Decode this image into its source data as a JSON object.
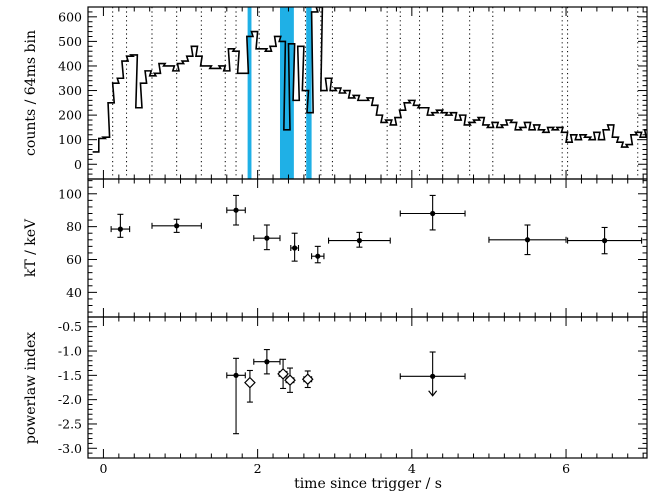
{
  "chart_data": [
    {
      "type": "line",
      "step": true,
      "ylabel": "counts / 64ms bin",
      "xlim": [
        -0.2,
        7.05
      ],
      "ylim": [
        -60,
        640
      ],
      "yticks": [
        0,
        100,
        200,
        300,
        400,
        500,
        600
      ],
      "x": [
        -0.14,
        -0.06,
        0.0,
        0.06,
        0.12,
        0.18,
        0.24,
        0.3,
        0.36,
        0.42,
        0.48,
        0.54,
        0.6,
        0.66,
        0.72,
        0.78,
        0.84,
        0.9,
        0.96,
        1.02,
        1.08,
        1.14,
        1.2,
        1.26,
        1.32,
        1.38,
        1.44,
        1.5,
        1.56,
        1.62,
        1.68,
        1.74,
        1.8,
        1.86,
        1.92,
        1.98,
        2.04,
        2.1,
        2.16,
        2.22,
        2.28,
        2.34,
        2.4,
        2.46,
        2.52,
        2.58,
        2.64,
        2.7,
        2.76,
        2.82,
        2.88,
        2.94,
        3.0,
        3.06,
        3.12,
        3.18,
        3.24,
        3.3,
        3.36,
        3.42,
        3.48,
        3.54,
        3.6,
        3.66,
        3.72,
        3.78,
        3.84,
        3.9,
        3.96,
        4.02,
        4.08,
        4.14,
        4.2,
        4.26,
        4.32,
        4.38,
        4.44,
        4.5,
        4.56,
        4.62,
        4.68,
        4.74,
        4.8,
        4.86,
        4.92,
        4.98,
        5.04,
        5.1,
        5.16,
        5.22,
        5.28,
        5.34,
        5.4,
        5.46,
        5.52,
        5.58,
        5.64,
        5.7,
        5.76,
        5.82,
        5.88,
        5.94,
        6.0,
        6.06,
        6.12,
        6.18,
        6.24,
        6.3,
        6.36,
        6.42,
        6.48,
        6.54,
        6.6,
        6.66,
        6.72,
        6.78,
        6.84,
        6.9,
        6.96,
        7.02
      ],
      "values": [
        50,
        105,
        110,
        250,
        330,
        350,
        420,
        440,
        445,
        230,
        330,
        380,
        360,
        370,
        410,
        400,
        400,
        380,
        410,
        420,
        440,
        480,
        440,
        400,
        400,
        390,
        390,
        400,
        380,
        470,
        460,
        370,
        370,
        520,
        540,
        470,
        470,
        460,
        480,
        520,
        500,
        140,
        490,
        260,
        480,
        300,
        210,
        620,
        640,
        300,
        350,
        300,
        310,
        290,
        300,
        270,
        280,
        260,
        260,
        270,
        240,
        200,
        170,
        180,
        160,
        190,
        220,
        250,
        260,
        240,
        230,
        230,
        200,
        210,
        220,
        210,
        200,
        210,
        180,
        200,
        160,
        170,
        180,
        190,
        160,
        150,
        170,
        150,
        160,
        180,
        170,
        140,
        150,
        170,
        140,
        160,
        140,
        130,
        150,
        140,
        150,
        130,
        90,
        120,
        100,
        120,
        110,
        100,
        130,
        100,
        140,
        160,
        110,
        90,
        70,
        80,
        120,
        130,
        110,
        140
      ],
      "vlines": [
        0.12,
        0.3,
        0.63,
        0.95,
        1.27,
        1.58,
        1.72,
        2.02,
        2.62,
        2.82,
        2.97,
        3.68,
        3.85,
        4.1,
        4.4,
        4.75,
        5.05,
        5.95,
        6.02,
        6.93
      ],
      "shaded_regions": [
        [
          1.87,
          1.92
        ],
        [
          2.29,
          2.47
        ],
        [
          2.63,
          2.7
        ]
      ]
    },
    {
      "type": "scatter",
      "ylabel": "kT / keV",
      "xlim": [
        -0.2,
        7.05
      ],
      "ylim": [
        25,
        109
      ],
      "yticks": [
        40,
        60,
        80,
        100
      ],
      "points": [
        {
          "x": 0.22,
          "y": 78.5,
          "xerr": 0.12,
          "yerr_lo": 5,
          "yerr_hi": 9
        },
        {
          "x": 0.95,
          "y": 80.5,
          "xerr": 0.32,
          "yerr_lo": 4,
          "yerr_hi": 4
        },
        {
          "x": 1.72,
          "y": 90.0,
          "xerr": 0.12,
          "yerr_lo": 9,
          "yerr_hi": 9
        },
        {
          "x": 2.12,
          "y": 73.0,
          "xerr": 0.17,
          "yerr_lo": 7,
          "yerr_hi": 8
        },
        {
          "x": 2.48,
          "y": 67.0,
          "xerr": 0.05,
          "yerr_lo": 8,
          "yerr_hi": 9
        },
        {
          "x": 2.78,
          "y": 62.0,
          "xerr": 0.08,
          "yerr_lo": 4,
          "yerr_hi": 6
        },
        {
          "x": 3.32,
          "y": 71.5,
          "xerr": 0.4,
          "yerr_lo": 4,
          "yerr_hi": 5
        },
        {
          "x": 4.27,
          "y": 88.0,
          "xerr": 0.42,
          "yerr_lo": 10,
          "yerr_hi": 11
        },
        {
          "x": 5.5,
          "y": 72.0,
          "xerr": 0.5,
          "yerr_lo": 9,
          "yerr_hi": 9
        },
        {
          "x": 6.5,
          "y": 71.5,
          "xerr": 0.48,
          "yerr_lo": 8,
          "yerr_hi": 8
        }
      ]
    },
    {
      "type": "scatter",
      "ylabel": "powerlaw index",
      "xlabel": "time since trigger / s",
      "xlim": [
        -0.2,
        7.05
      ],
      "ylim": [
        -3.2,
        -0.3
      ],
      "yticks": [
        -3.0,
        -2.5,
        -2.0,
        -1.5,
        -1.0,
        -0.5
      ],
      "xticks": [
        0,
        2,
        4,
        6
      ],
      "points": [
        {
          "x": 1.72,
          "y": -1.5,
          "xerr": 0.12,
          "yerr_lo": 1.2,
          "yerr_hi": 0.35,
          "marker": "dot"
        },
        {
          "x": 1.9,
          "y": -1.65,
          "xerr": 0.03,
          "yerr_lo": 0.4,
          "yerr_hi": 0.25,
          "marker": "diamond"
        },
        {
          "x": 2.12,
          "y": -1.22,
          "xerr": 0.17,
          "yerr_lo": 0.25,
          "yerr_hi": 0.25,
          "marker": "dot"
        },
        {
          "x": 2.33,
          "y": -1.47,
          "xerr": 0.05,
          "yerr_lo": 0.3,
          "yerr_hi": 0.3,
          "marker": "diamond"
        },
        {
          "x": 2.42,
          "y": -1.6,
          "xerr": 0.05,
          "yerr_lo": 0.25,
          "yerr_hi": 0.25,
          "marker": "diamond"
        },
        {
          "x": 2.65,
          "y": -1.58,
          "xerr": 0.05,
          "yerr_lo": 0.17,
          "yerr_hi": 0.17,
          "marker": "diamond"
        },
        {
          "x": 4.27,
          "y": -1.52,
          "xerr": 0.42,
          "yerr_lo": 0.4,
          "yerr_hi": 0.5,
          "marker": "dot",
          "upper_limit": true
        }
      ]
    }
  ],
  "colors": {
    "shade": "#1fb0e6",
    "ink": "#000000",
    "dotted": "#000000"
  }
}
